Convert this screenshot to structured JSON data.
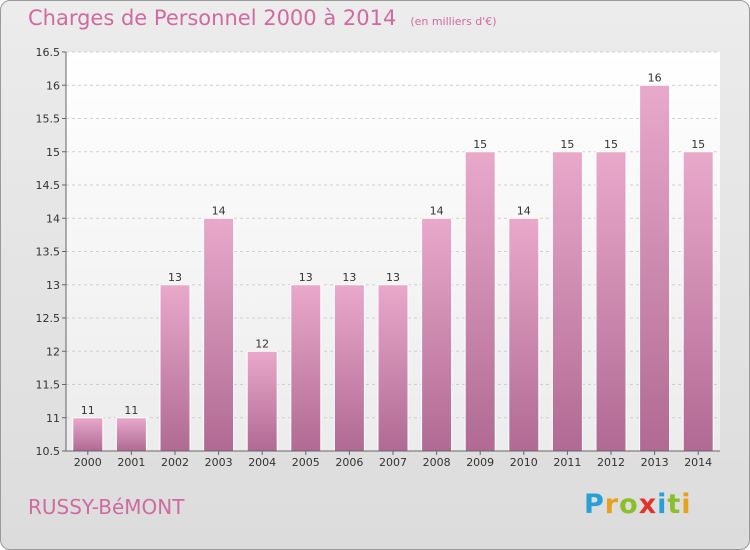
{
  "header": {
    "title": "Charges de Personnel 2000 à 2014",
    "subtitle": "(en milliers d'€)"
  },
  "footer": {
    "commune": "RUSSY-BéMONT",
    "logo": "Proxiti",
    "logo_letters": [
      {
        "char": "P",
        "color": "#2a9fd6"
      },
      {
        "char": "r",
        "color": "#e6a21c"
      },
      {
        "char": "o",
        "color": "#8bbf2a"
      },
      {
        "char": "x",
        "color": "#e0342a"
      },
      {
        "char": "i",
        "color": "#2a9fd6"
      },
      {
        "char": "t",
        "color": "#8bbf2a"
      },
      {
        "char": "i",
        "color": "#e6a21c"
      }
    ]
  },
  "chart_data": {
    "type": "bar",
    "title": "Charges de Personnel 2000 à 2014",
    "subtitle": "(en milliers d'€)",
    "categories": [
      "2000",
      "2001",
      "2002",
      "2003",
      "2004",
      "2005",
      "2006",
      "2007",
      "2008",
      "2009",
      "2010",
      "2011",
      "2012",
      "2013",
      "2014"
    ],
    "values": [
      11,
      11,
      13,
      14,
      12,
      13,
      13,
      13,
      14,
      15,
      14,
      15,
      15,
      16,
      15
    ],
    "value_labels": [
      "11",
      "11",
      "13",
      "14",
      "12",
      "13",
      "13",
      "13",
      "14",
      "15",
      "14",
      "15",
      "15",
      "16",
      "15"
    ],
    "ylim": [
      10.5,
      16.5
    ],
    "yticks": [
      10.5,
      11,
      11.5,
      12,
      12.5,
      13,
      13.5,
      14,
      14.5,
      15,
      15.5,
      16,
      16.5
    ],
    "ytick_labels": [
      "10.5",
      "11",
      "11.5",
      "12",
      "12.5",
      "13",
      "13.5",
      "14",
      "14.5",
      "15",
      "15.5",
      "16",
      "16.5"
    ],
    "grid": true,
    "bar_color": "#d98cb6",
    "legend": "none"
  }
}
